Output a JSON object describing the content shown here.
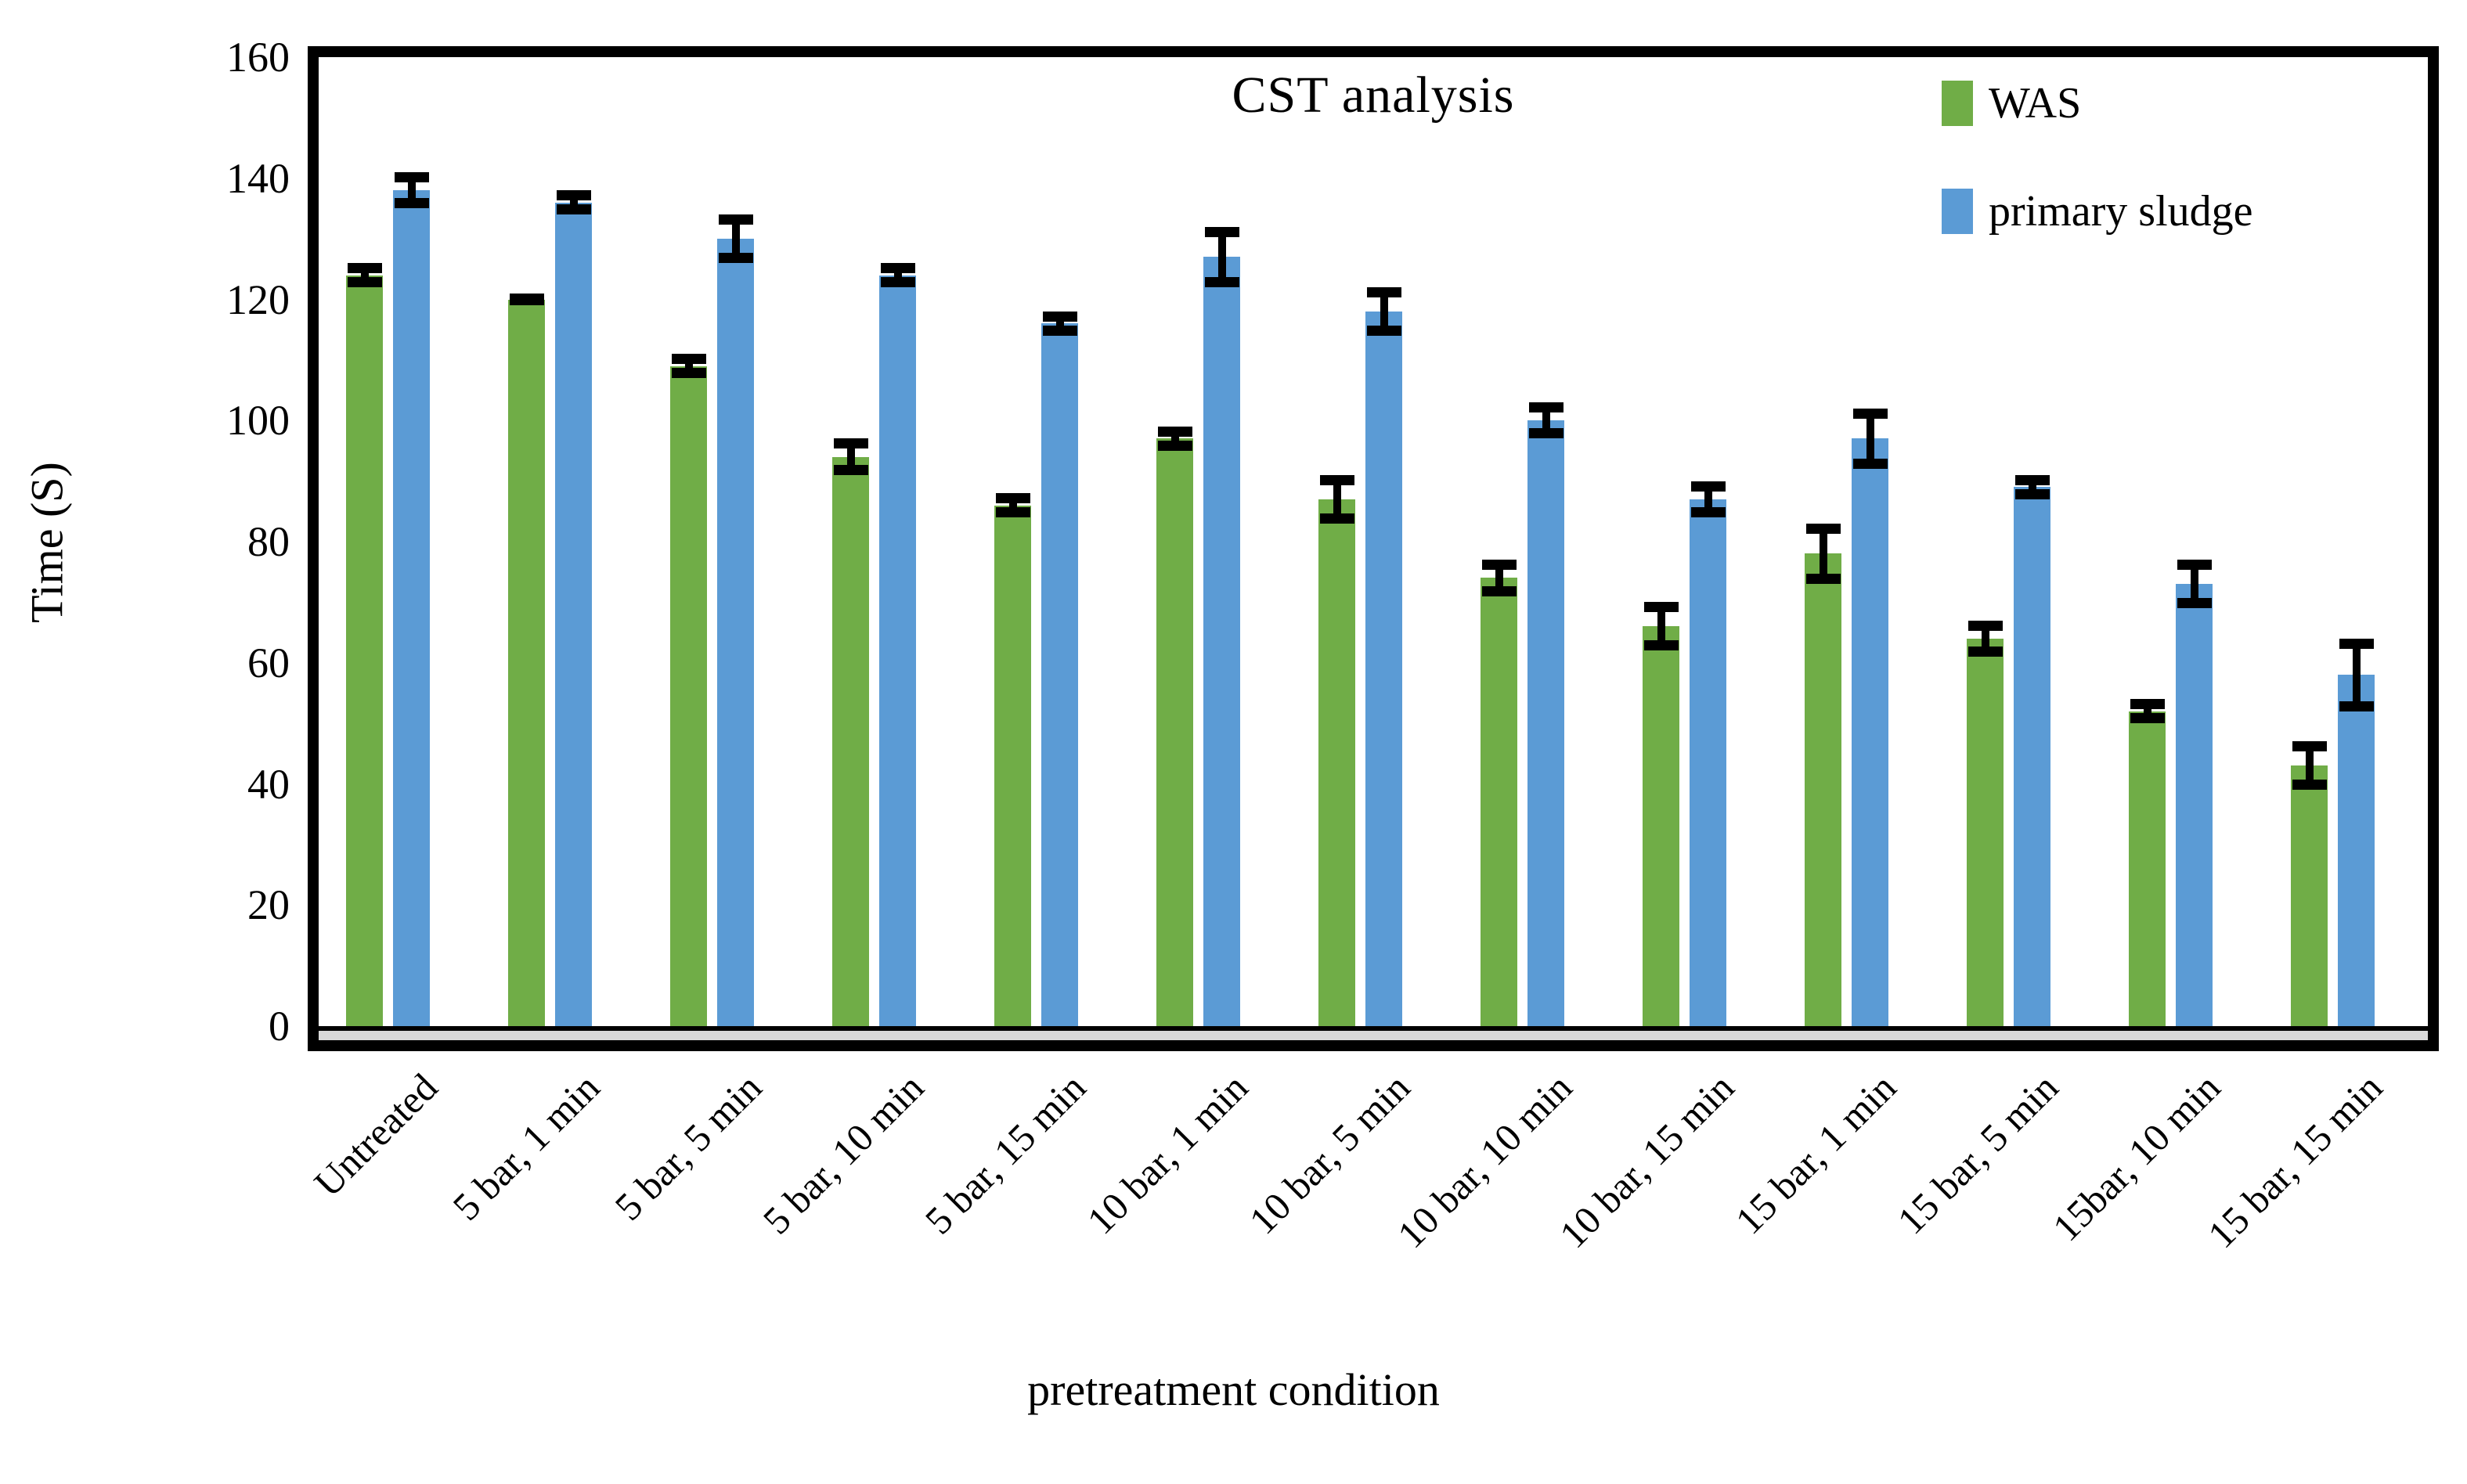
{
  "chart_data": {
    "type": "bar",
    "title": "CST analysis",
    "xlabel": "pretreatment condition",
    "ylabel": "Time (S)",
    "ylim": [
      0,
      160
    ],
    "yticks": [
      0,
      20,
      40,
      60,
      80,
      100,
      120,
      140,
      160
    ],
    "grid": false,
    "legend_position": "top-right-inside",
    "error_bars": true,
    "categories": [
      "Untreated",
      "5 bar, 1 min",
      "5 bar, 5 min",
      "5 bar, 10 min",
      "5 bar, 15 min",
      "10 bar, 1 min",
      "10 bar, 5 min",
      "10 bar, 10 min",
      "10 bar, 15 min",
      "15 bar, 1 min",
      "15 bar, 5 min",
      "15bar, 10 min",
      "15 bar, 15 min"
    ],
    "series": [
      {
        "name": "WAS",
        "color": "#70AD47",
        "values": [
          124,
          120,
          109,
          94,
          86,
          97,
          87,
          74,
          66,
          78,
          64,
          52,
          43
        ],
        "errors": [
          2,
          1,
          2,
          3,
          2,
          2,
          4,
          3,
          4,
          5,
          3,
          2,
          4
        ]
      },
      {
        "name": "primary sludge",
        "color": "#5B9BD5",
        "values": [
          138,
          136,
          130,
          124,
          116,
          127,
          118,
          100,
          87,
          97,
          89,
          73,
          58
        ],
        "errors": [
          3,
          2,
          4,
          2,
          2,
          5,
          4,
          3,
          3,
          5,
          2,
          4,
          6
        ]
      }
    ],
    "colors": {
      "frame": "#000000",
      "axis_shadow": "#D9D9D9",
      "error_bar": "#000000",
      "background": "#FFFFFF"
    }
  }
}
